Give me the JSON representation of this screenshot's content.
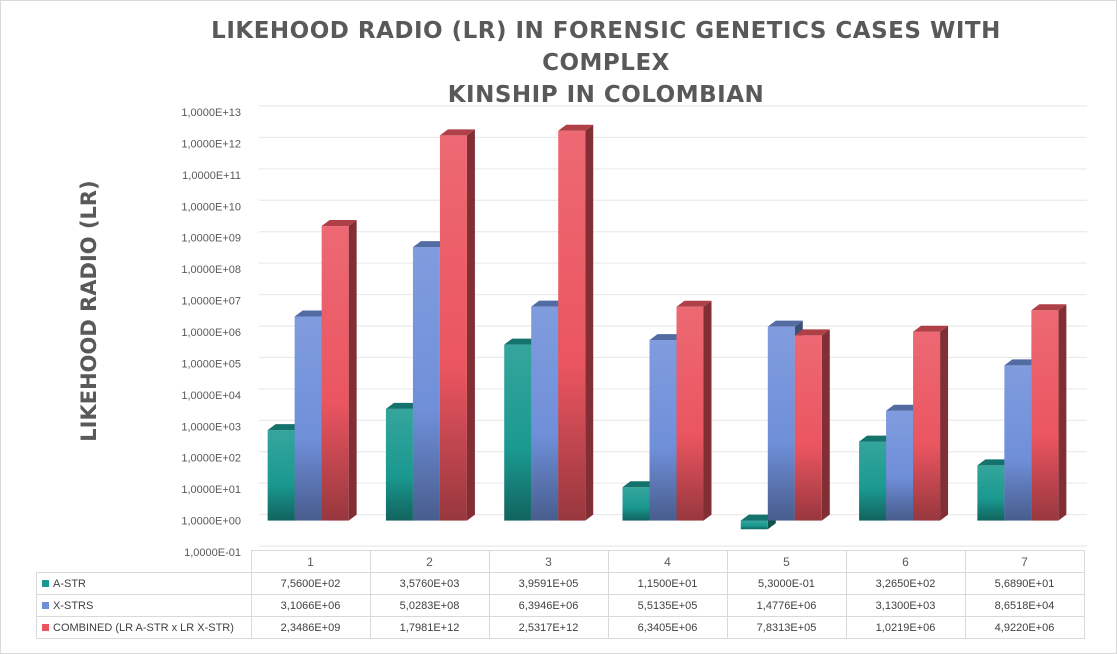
{
  "chart_data": {
    "type": "bar",
    "title": "LIKEHOOD RADIO (LR) IN FORENSIC GENETICS CASES WITH COMPLEX KINSHIP IN COLOMBIAN",
    "title_lines": [
      "LIKEHOOD RADIO (LR) IN FORENSIC GENETICS CASES WITH COMPLEX",
      "KINSHIP IN COLOMBIAN"
    ],
    "xlabel": "",
    "ylabel": "LIKEHOOD RADIO (LR)",
    "y_scale": "log10",
    "ylim": [
      0.1,
      10000000000000
    ],
    "y_tick_labels": [
      "1,0000E-01",
      "1,0000E+00",
      "1,0000E+01",
      "1,0000E+02",
      "1,0000E+03",
      "1,0000E+04",
      "1,0000E+05",
      "1,0000E+06",
      "1,0000E+07",
      "1,0000E+08",
      "1,0000E+09",
      "1,0000E+10",
      "1,0000E+11",
      "1,0000E+12",
      "1,0000E+13"
    ],
    "grid": true,
    "legend": "data-table",
    "categories": [
      "1",
      "2",
      "3",
      "4",
      "5",
      "6",
      "7"
    ],
    "series": [
      {
        "name": "A-STR",
        "color": "#1a9990",
        "values": [
          756.0,
          3576.0,
          395910.0,
          11.5,
          0.53,
          326.5,
          56.89
        ],
        "value_labels": [
          "7,5600E+02",
          "3,5760E+03",
          "3,9591E+05",
          "1,1500E+01",
          "5,3000E-01",
          "3,2650E+02",
          "5,6890E+01"
        ]
      },
      {
        "name": "X-STRS",
        "color": "#6f8fd9",
        "values": [
          3106600.0,
          502830000.0,
          6394600.0,
          551350.0,
          1477600.0,
          3130.0,
          86518.0
        ],
        "value_labels": [
          "3,1066E+06",
          "5,0283E+08",
          "6,3946E+06",
          "5,5135E+05",
          "1,4776E+06",
          "3,1300E+03",
          "8,6518E+04"
        ]
      },
      {
        "name": "COMBINED (LR A-STR x LR X-STR)",
        "color": "#ea5560",
        "values": [
          2348600000.0,
          1798100000000.0,
          2531700000000.0,
          6340500.0,
          783130.0,
          1021900.0,
          4922000.0
        ],
        "value_labels": [
          "2,3486E+09",
          "1,7981E+12",
          "2,5317E+12",
          "6,3405E+06",
          "7,8313E+05",
          "1,0219E+06",
          "4,9220E+06"
        ]
      }
    ]
  }
}
